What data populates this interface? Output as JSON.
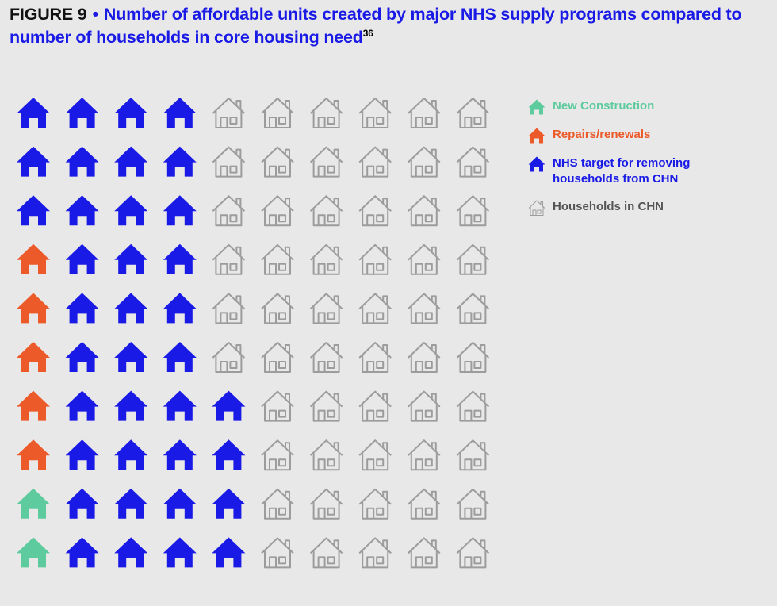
{
  "header": {
    "figure_label": "FIGURE 9",
    "separator": "•",
    "title": "Number of affordable units created by major NHS supply programs compared to number of households in core housing need",
    "footnote": "36"
  },
  "chart_data": {
    "type": "pictogram",
    "title": "Number of affordable units created by major NHS supply programs compared to number of households in core housing need",
    "grid": {
      "rows": 10,
      "cols": 10
    },
    "fill_order": "by column from the left, bottom to top",
    "series": [
      {
        "name": "New Construction",
        "icons": 2,
        "color": "#5ecb9e",
        "style": "filled"
      },
      {
        "name": "Repairs/renewals",
        "icons": 5,
        "color": "#ec5a2a",
        "style": "filled"
      },
      {
        "name": "NHS target for removing households from CHN",
        "icons": 37,
        "color": "#1a1ae6",
        "style": "filled"
      },
      {
        "name": "Households in CHN",
        "icons": 100,
        "color": "#9c9c9c",
        "style": "outline"
      }
    ],
    "legend_position": "right",
    "grid_lines": false
  },
  "icons": {
    "unit": "house-icon"
  }
}
